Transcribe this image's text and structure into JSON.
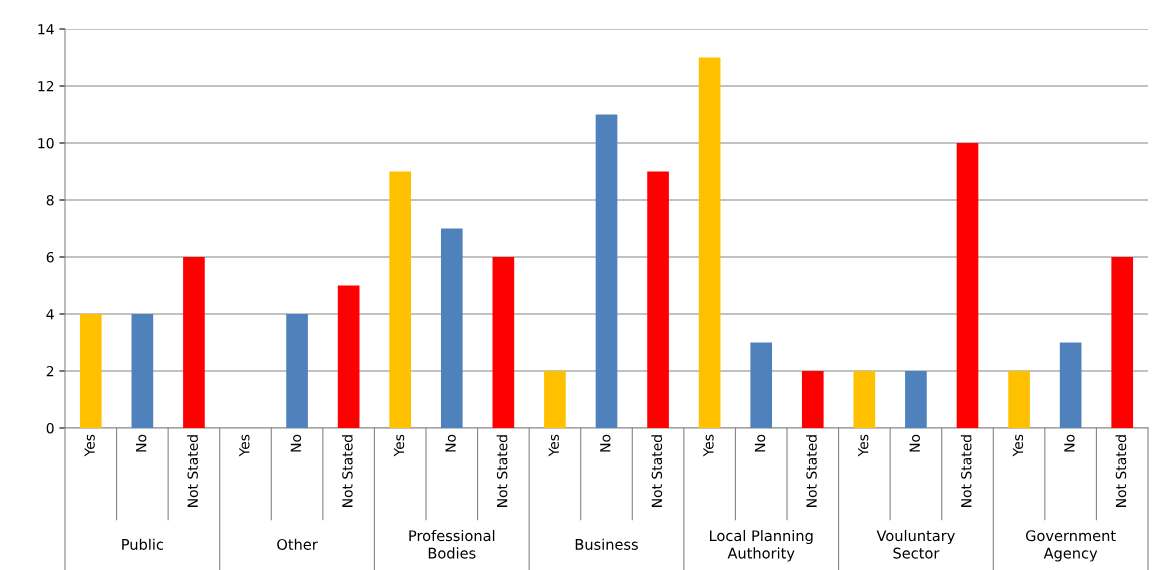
{
  "chart_data": {
    "type": "bar",
    "categories": [
      "Public",
      "Other",
      "Professional\nBodies",
      "Business",
      "Local Planning\nAuthority",
      "Vouluntary\nSector",
      "Government\nAgency"
    ],
    "series": [
      {
        "name": "Yes",
        "color": "#ffc000",
        "values": [
          4,
          0,
          9,
          2,
          13,
          2,
          2
        ]
      },
      {
        "name": "No",
        "color": "#4f81bd",
        "values": [
          4,
          4,
          7,
          11,
          3,
          2,
          3
        ]
      },
      {
        "name": "Not Stated",
        "color": "#ff0000",
        "values": [
          6,
          5,
          6,
          9,
          2,
          10,
          6
        ]
      }
    ],
    "ylim": [
      0,
      14
    ],
    "yticks": [
      0,
      2,
      4,
      6,
      8,
      10,
      12,
      14
    ],
    "grid": "y",
    "legend": false
  }
}
